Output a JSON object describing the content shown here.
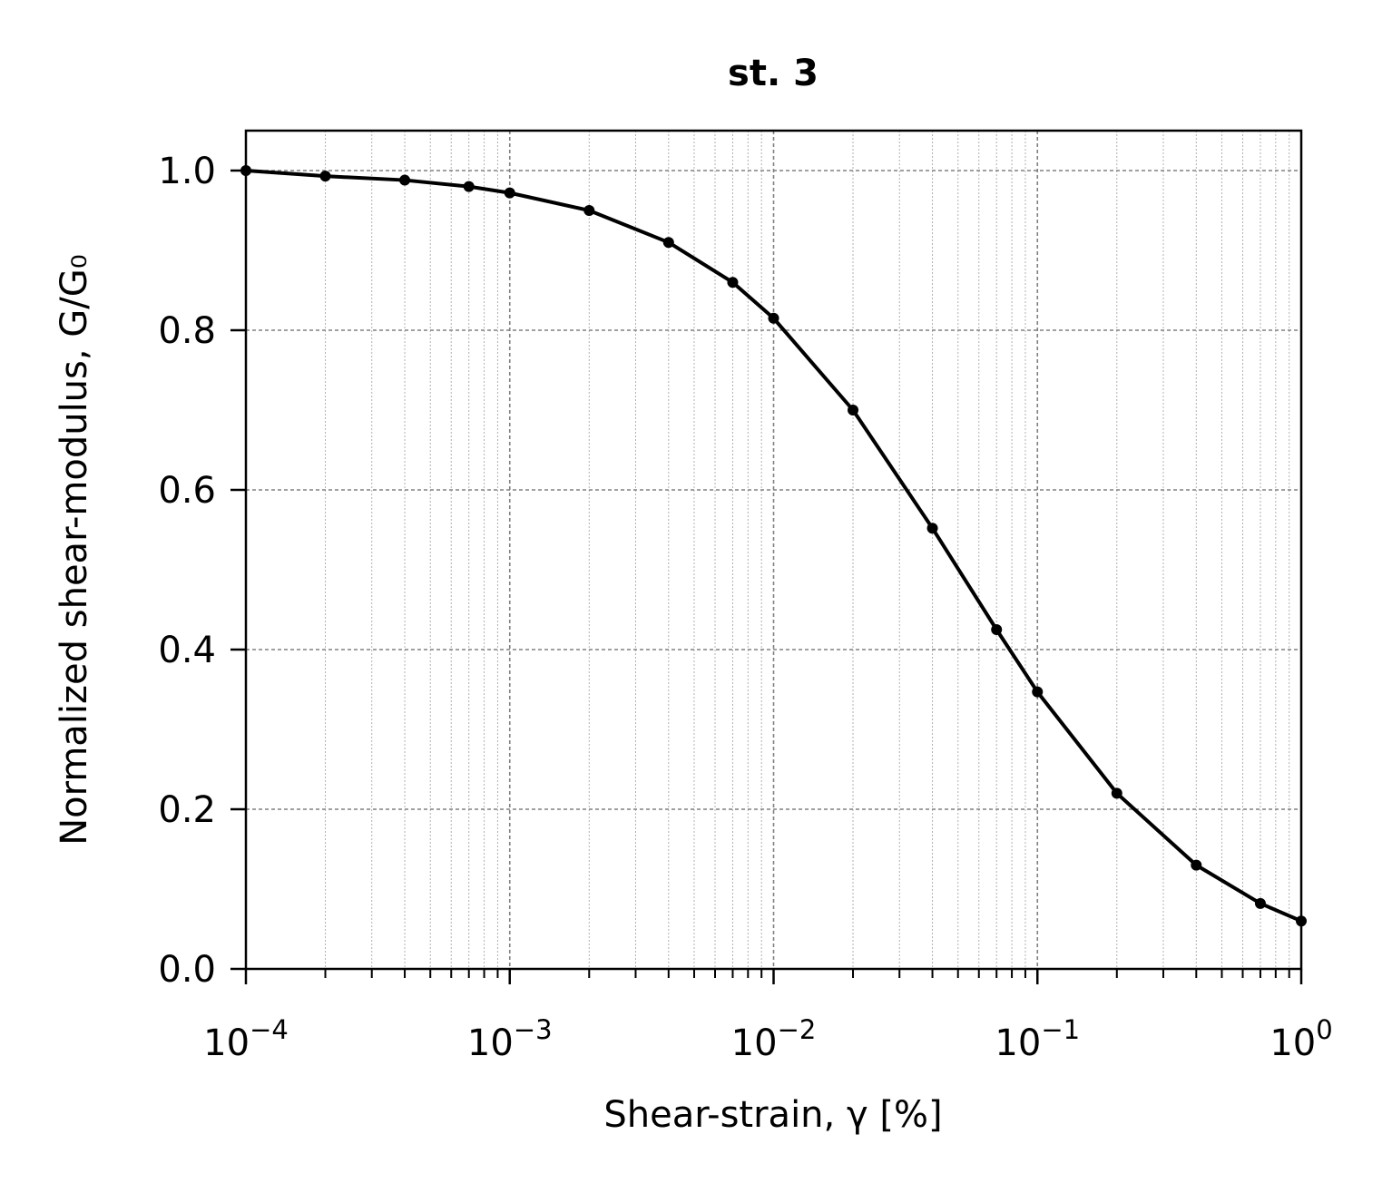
{
  "chart_data": {
    "type": "line",
    "title": "st. 3",
    "xlabel": "Shear-strain, γ [%]",
    "ylabel": "Normalized shear-modulus, G/G₀",
    "xscale": "log",
    "xlim": [
      0.0001,
      1
    ],
    "ylim": [
      0,
      1.05
    ],
    "grid": true,
    "legend": "none",
    "x_ticks": [
      {
        "base": "10",
        "exp": "−4",
        "value": 0.0001
      },
      {
        "base": "10",
        "exp": "−3",
        "value": 0.001
      },
      {
        "base": "10",
        "exp": "−2",
        "value": 0.01
      },
      {
        "base": "10",
        "exp": "−1",
        "value": 0.1
      },
      {
        "base": "10",
        "exp": "0",
        "value": 1
      }
    ],
    "y_ticks": [
      "0.0",
      "0.2",
      "0.4",
      "0.6",
      "0.8",
      "1.0"
    ],
    "line_color": "#000000",
    "series": [
      {
        "x": [
          0.0001,
          0.0002,
          0.0004,
          0.0007,
          0.001,
          0.002,
          0.004,
          0.007,
          0.01,
          0.02,
          0.04,
          0.07,
          0.1,
          0.2,
          0.4,
          0.7,
          1.0
        ],
        "y": [
          1.0,
          0.993,
          0.988,
          0.98,
          0.972,
          0.95,
          0.91,
          0.86,
          0.815,
          0.7,
          0.552,
          0.425,
          0.347,
          0.22,
          0.13,
          0.082,
          0.06
        ]
      }
    ]
  }
}
